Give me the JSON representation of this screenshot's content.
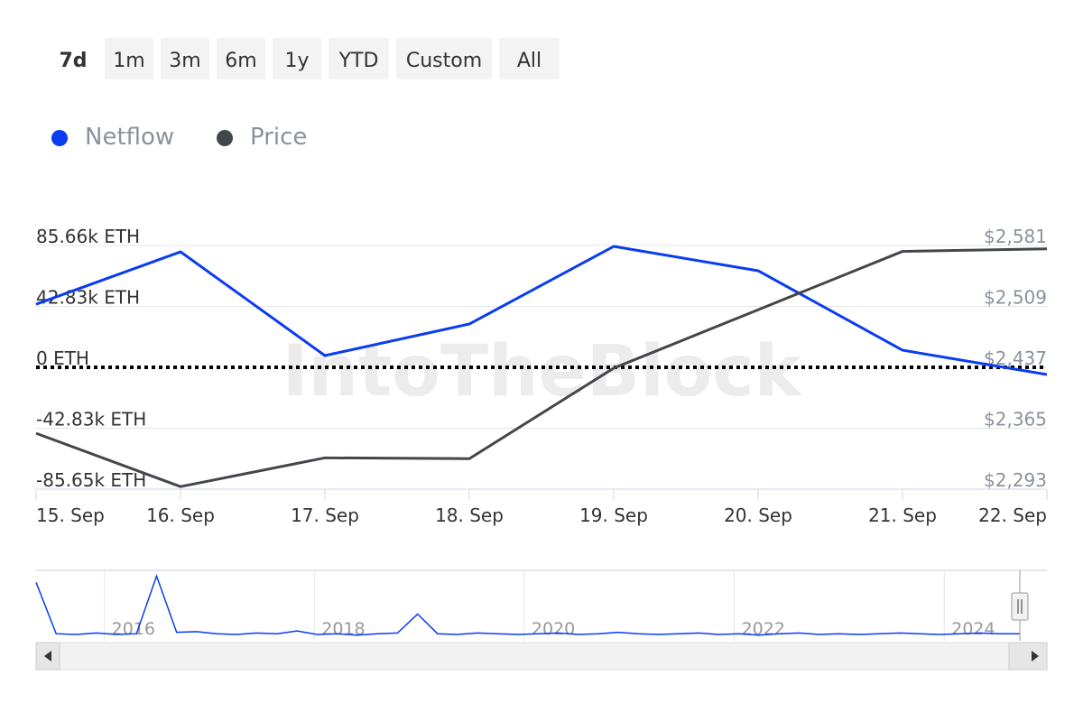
{
  "range_buttons": [
    "7d",
    "1m",
    "3m",
    "6m",
    "1y",
    "YTD",
    "Custom",
    "All"
  ],
  "selected_range": "7d",
  "watermark": "IntoTheBlock",
  "chart_data": {
    "type": "line",
    "categories": [
      "15. Sep",
      "16. Sep",
      "17. Sep",
      "18. Sep",
      "19. Sep",
      "20. Sep",
      "21. Sep",
      "22. Sep"
    ],
    "series": [
      {
        "name": "Netflow",
        "color": "#0a3cf0",
        "values": [
          44400,
          81200,
          8250,
          30450,
          85000,
          67900,
          12050,
          -5080
        ]
      },
      {
        "name": "Price",
        "color": "#43464b",
        "axis": "y2",
        "values": [
          2359,
          2296,
          2330,
          2329,
          2436,
          2505,
          2574,
          2577
        ]
      }
    ],
    "ylim": [
      -85650,
      85660
    ],
    "yticks": [
      {
        "value": -85650,
        "label": "-85.65k ETH"
      },
      {
        "value": -42830,
        "label": "-42.83k ETH"
      },
      {
        "value": 0,
        "label": "0 ETH"
      },
      {
        "value": 42830,
        "label": "42.83k ETH"
      },
      {
        "value": 85660,
        "label": "85.66k ETH"
      }
    ],
    "y2lim": [
      2293,
      2581
    ],
    "y2ticks": [
      {
        "value": 2293,
        "label": "$2,293"
      },
      {
        "value": 2365,
        "label": "$2,365"
      },
      {
        "value": 2437,
        "label": "$2,437"
      },
      {
        "value": 2509,
        "label": "$2,509"
      },
      {
        "value": 2581,
        "label": "$2,581"
      }
    ],
    "grid": true,
    "legend": "top-left",
    "navigator": {
      "color": "#0a3cf0",
      "xlim": [
        2015.35,
        2024.72
      ],
      "xticks": [
        2016,
        2018,
        2020,
        2022,
        2024
      ],
      "ylim": [
        0,
        100
      ],
      "values": [
        83,
        10,
        9,
        11,
        9,
        10,
        92,
        12,
        13,
        10,
        9,
        11,
        10,
        14,
        9,
        10,
        8,
        10,
        11,
        38,
        10,
        9,
        11,
        10,
        9,
        10,
        11,
        9,
        10,
        12,
        10,
        9,
        10,
        11,
        9,
        10,
        8,
        10,
        11,
        9,
        10,
        9,
        10,
        11,
        10,
        9,
        10,
        11,
        10,
        10
      ]
    }
  }
}
